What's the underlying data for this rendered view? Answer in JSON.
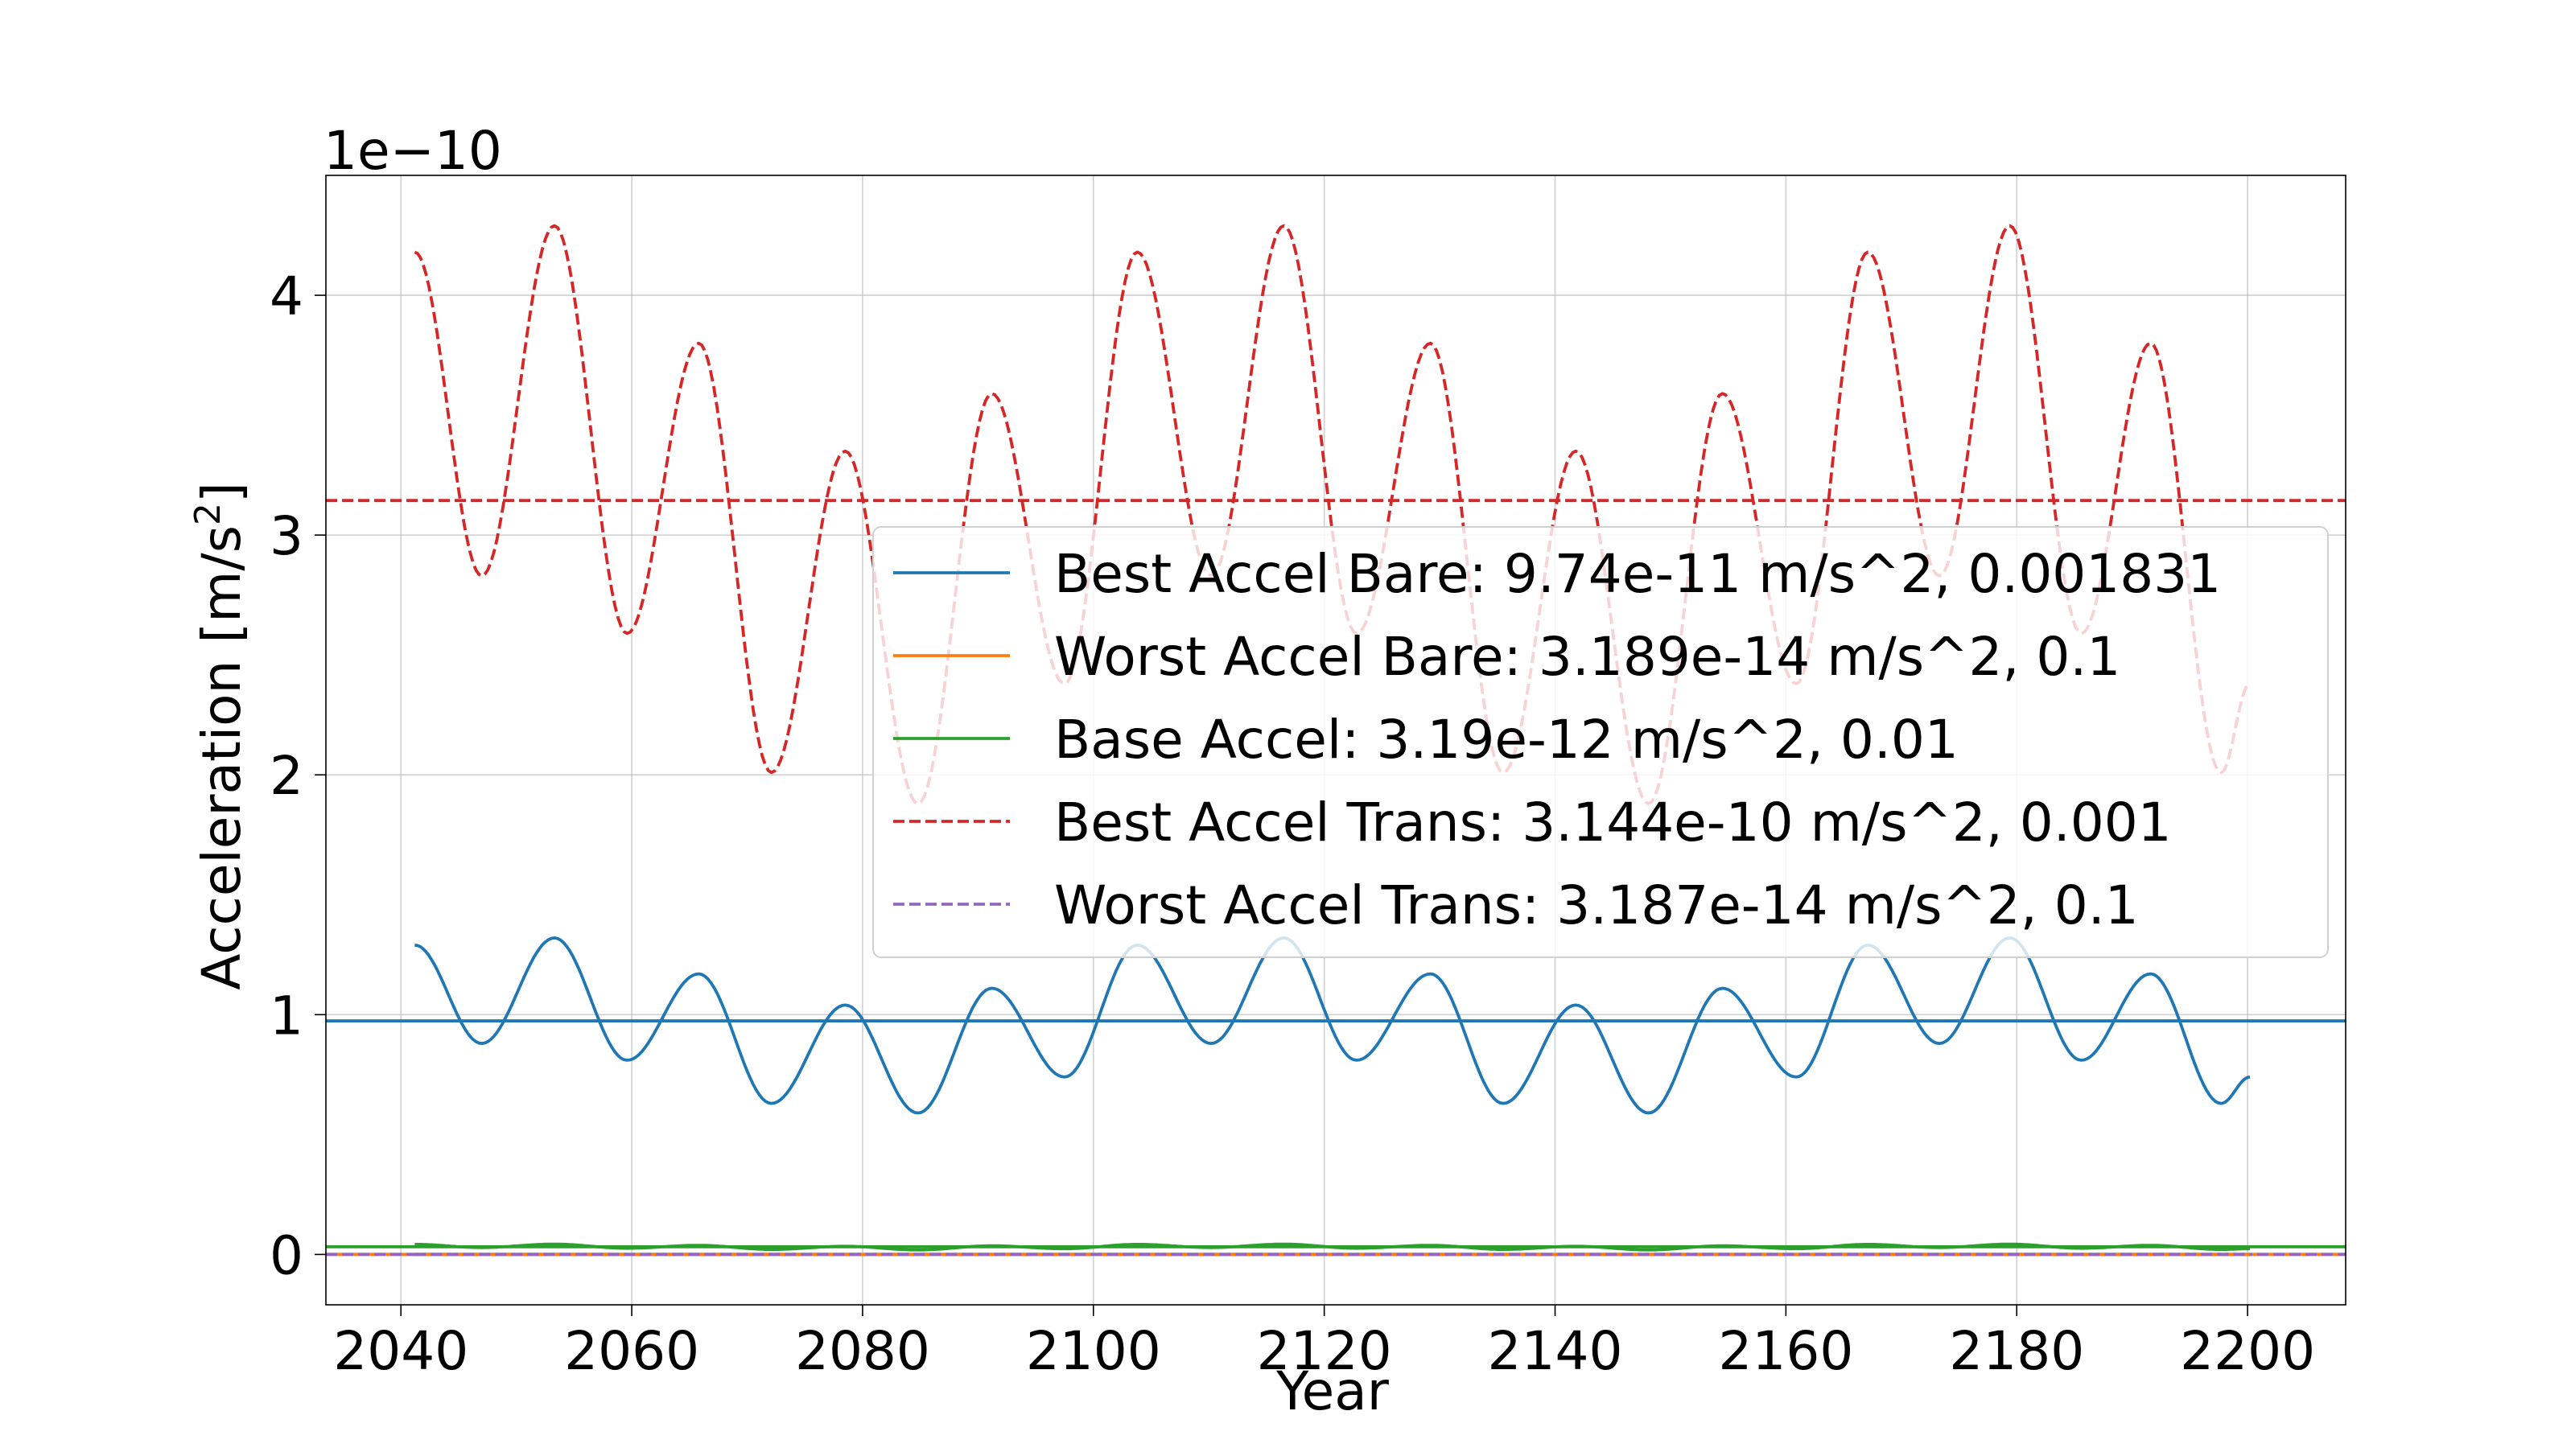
{
  "chart_data": {
    "type": "line",
    "xlabel": "Year",
    "ylabel": "Acceleration [m/s",
    "ylabel_sup": "2",
    "ylabel_end": "]",
    "y_offset_text": "1e−10",
    "y_multiplier": 1e-10,
    "xlim": [
      2033.5,
      2208.5
    ],
    "ylim": [
      -0.21,
      4.5
    ],
    "x_ticks": [
      2040,
      2060,
      2080,
      2100,
      2120,
      2140,
      2160,
      2180,
      2200
    ],
    "y_ticks": [
      0,
      1,
      2,
      3,
      4
    ],
    "x_tick_labels": [
      "2040",
      "2060",
      "2080",
      "2100",
      "2120",
      "2140",
      "2160",
      "2180",
      "2200"
    ],
    "y_tick_labels": [
      "0",
      "1",
      "2",
      "3",
      "4"
    ],
    "grid": true,
    "legend_position": "center-right",
    "series": [
      {
        "name": "Best Accel Bare: 9.74e-11 m/s^2, 0.001831",
        "color": "#1f77b4",
        "dash": "solid",
        "mean": 0.974,
        "x": [
          2041.2,
          2047,
          2053.3,
          2059.6,
          2065.8,
          2072.1,
          2078.5,
          2084.8,
          2091.2,
          2097.5,
          2103.8,
          2110.2,
          2116.5,
          2122.8,
          2129.2,
          2135.5,
          2141.8,
          2148.1,
          2154.5,
          2160.9,
          2167.1,
          2173.3,
          2179.4,
          2185.6,
          2191.6,
          2197.7,
          2200.2
        ],
        "y": [
          1.29,
          0.88,
          1.32,
          0.81,
          1.17,
          0.63,
          1.04,
          0.59,
          1.11,
          0.74,
          1.29,
          0.88,
          1.32,
          0.81,
          1.17,
          0.63,
          1.04,
          0.59,
          1.11,
          0.74,
          1.29,
          0.88,
          1.32,
          0.81,
          1.17,
          0.63,
          0.74
        ]
      },
      {
        "name": "Worst Accel Bare: 3.189e-14 m/s^2, 0.1",
        "color": "#ff7f0e",
        "dash": "solid",
        "mean": 0.0003,
        "x": [
          2041.2,
          2200.2
        ],
        "y": [
          0.0003,
          0.0003
        ]
      },
      {
        "name": "Base Accel: 3.19e-12 m/s^2, 0.01",
        "color": "#2ca02c",
        "dash": "solid",
        "mean": 0.0319,
        "x": [
          2041.2,
          2047,
          2053.3,
          2059.6,
          2065.8,
          2072.1,
          2078.5,
          2084.8,
          2091.2,
          2097.5,
          2103.8,
          2110.2,
          2116.5,
          2122.8,
          2129.2,
          2135.5,
          2141.8,
          2148.1,
          2154.5,
          2160.9,
          2167.1,
          2173.3,
          2179.4,
          2185.6,
          2191.6,
          2197.7,
          2200.2
        ],
        "y": [
          0.042,
          0.029,
          0.043,
          0.026,
          0.038,
          0.021,
          0.034,
          0.019,
          0.036,
          0.024,
          0.042,
          0.029,
          0.043,
          0.026,
          0.038,
          0.021,
          0.034,
          0.019,
          0.036,
          0.024,
          0.042,
          0.029,
          0.043,
          0.026,
          0.038,
          0.021,
          0.024
        ]
      },
      {
        "name": "Best Accel Trans: 3.144e-10 m/s^2, 0.001",
        "color": "#d62728",
        "dash": "dashed",
        "mean": 3.144,
        "x": [
          2041.2,
          2047,
          2053.3,
          2059.6,
          2065.8,
          2072.1,
          2078.5,
          2084.8,
          2091.2,
          2097.5,
          2103.8,
          2110.2,
          2116.5,
          2122.8,
          2129.2,
          2135.5,
          2141.8,
          2148.1,
          2154.5,
          2160.9,
          2167.1,
          2173.3,
          2179.4,
          2185.6,
          2191.6,
          2197.7,
          2200.2
        ],
        "y": [
          4.18,
          2.83,
          4.29,
          2.59,
          3.8,
          2.01,
          3.35,
          1.88,
          3.59,
          2.38,
          4.18,
          2.83,
          4.29,
          2.59,
          3.8,
          2.01,
          3.35,
          1.88,
          3.59,
          2.38,
          4.18,
          2.83,
          4.29,
          2.59,
          3.8,
          2.01,
          2.38
        ]
      },
      {
        "name": "Worst Accel Trans: 3.187e-14 m/s^2, 0.1",
        "color": "#9467bd",
        "dash": "dashed",
        "mean": 0.0003,
        "x": [
          2041.2,
          2200.2
        ],
        "y": [
          0.0003,
          0.0003
        ]
      }
    ]
  }
}
